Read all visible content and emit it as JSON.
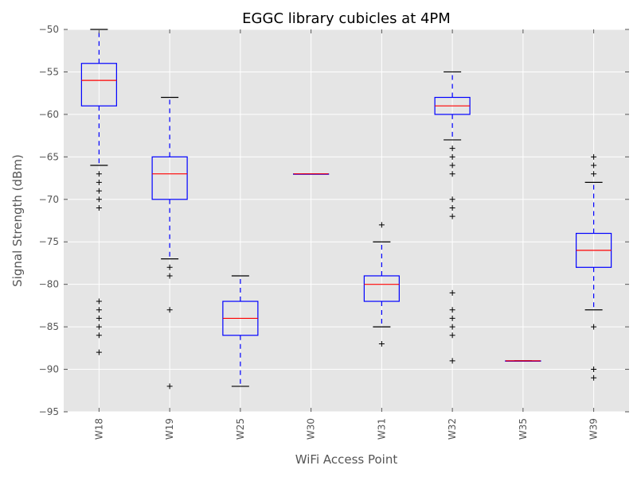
{
  "chart_data": {
    "type": "box",
    "title": "EGGC library cubicles at 4PM",
    "xlabel": "WiFi Access Point",
    "ylabel": "Signal Strength (dBm)",
    "ylim": [
      -95,
      -50
    ],
    "yticks": [
      -95,
      -90,
      -85,
      -80,
      -75,
      -70,
      -65,
      -60,
      -55,
      -50
    ],
    "grid": true,
    "categories": [
      "W18",
      "W19",
      "W25",
      "W30",
      "W31",
      "W32",
      "W35",
      "W39"
    ],
    "boxes": [
      {
        "category": "W18",
        "whisker_low": -66,
        "q1": -59,
        "median": -56,
        "q3": -54,
        "whisker_high": -50,
        "outliers": [
          -67,
          -68,
          -69,
          -70,
          -71,
          -82,
          -83,
          -84,
          -85,
          -86,
          -88
        ]
      },
      {
        "category": "W19",
        "whisker_low": -77,
        "q1": -70,
        "median": -67,
        "q3": -65,
        "whisker_high": -58,
        "outliers": [
          -78,
          -79,
          -83,
          -92
        ]
      },
      {
        "category": "W25",
        "whisker_low": -92,
        "q1": -86,
        "median": -84,
        "q3": -82,
        "whisker_high": -79,
        "outliers": []
      },
      {
        "category": "W30",
        "whisker_low": -67,
        "q1": -67,
        "median": -67,
        "q3": -67,
        "whisker_high": -67,
        "outliers": []
      },
      {
        "category": "W31",
        "whisker_low": -85,
        "q1": -82,
        "median": -80,
        "q3": -79,
        "whisker_high": -75,
        "outliers": [
          -73,
          -87
        ]
      },
      {
        "category": "W32",
        "whisker_low": -63,
        "q1": -60,
        "median": -59,
        "q3": -58,
        "whisker_high": -55,
        "outliers": [
          -64,
          -65,
          -66,
          -67,
          -70,
          -71,
          -72,
          -81,
          -83,
          -84,
          -85,
          -86,
          -89
        ]
      },
      {
        "category": "W35",
        "whisker_low": -89,
        "q1": -89,
        "median": -89,
        "q3": -89,
        "whisker_high": -89,
        "outliers": []
      },
      {
        "category": "W39",
        "whisker_low": -83,
        "q1": -78,
        "median": -76,
        "q3": -74,
        "whisker_high": -68,
        "outliers": [
          -65,
          -66,
          -67,
          -85,
          -90,
          -91
        ]
      }
    ],
    "colors": {
      "box": "#0000ff",
      "median": "#ff0000",
      "whisker": "#0000ff",
      "cap": "#000000",
      "plot_bg": "#e5e5e5",
      "grid": "#ffffff"
    }
  }
}
